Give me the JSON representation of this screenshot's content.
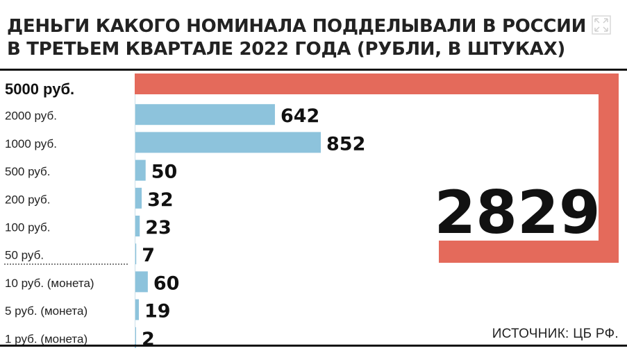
{
  "title": "ДЕНЬГИ КАКОГО НОМИНАЛА ПОДДЕЛЫВАЛИ В РОССИИ В ТРЕТЬЕМ КВАРТАЛЕ 2022 ГОДА (РУБЛИ, В ШТУКАХ)",
  "source": "ИСТОЧНИК: ЦБ РФ.",
  "colors": {
    "bar": "#8dc3dc",
    "highlight": "#e46a5b"
  },
  "chart_data": {
    "type": "bar",
    "orientation": "horizontal",
    "categories": [
      "5000 руб.",
      "2000 руб.",
      "1000 руб.",
      "500 руб.",
      "200 руб.",
      "100 руб.",
      "50 руб.",
      "10 руб. (монета)",
      "5 руб. (монета)",
      "1 руб. (монета)"
    ],
    "values": [
      2829,
      642,
      852,
      50,
      32,
      23,
      7,
      60,
      19,
      2
    ],
    "value_labels": [
      "2829",
      "642",
      "852",
      "50",
      "32",
      "23",
      "7",
      "60",
      "19",
      "2"
    ],
    "highlight_index": 0,
    "title": "ДЕНЬГИ КАКОГО НОМИНАЛА ПОДДЕЛЫВАЛИ В РОССИИ В ТРЕТЬЕМ КВАРТАЛЕ 2022 ГОДА (РУБЛИ, В ШТУКАХ)",
    "xlabel": "",
    "ylabel": "",
    "grid": false,
    "legend": "none"
  }
}
